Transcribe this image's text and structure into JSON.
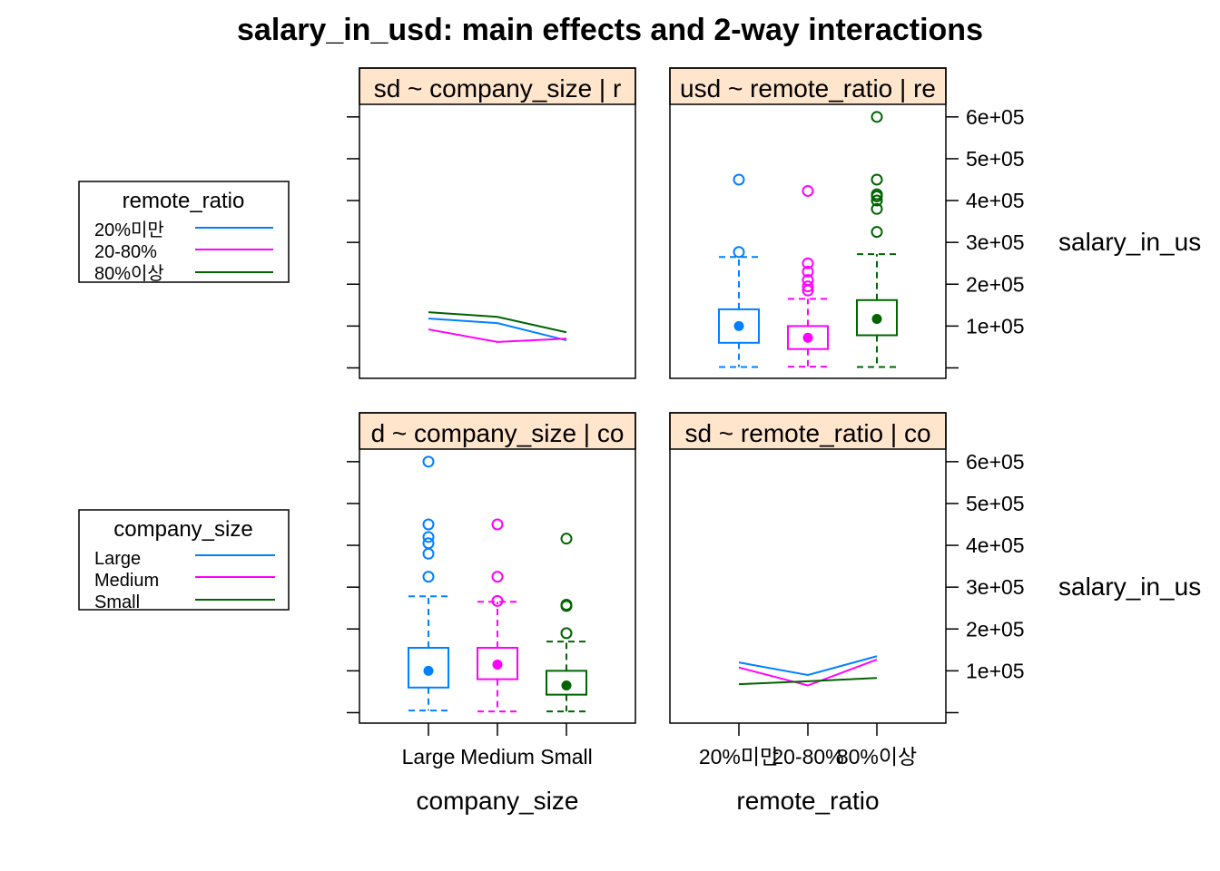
{
  "title": "salary_in_usd: main effects and 2-way interactions",
  "colors": {
    "strip_bg": "#FFE5CC",
    "series": [
      "#0080FF",
      "#FF00FF",
      "#006400"
    ]
  },
  "y_axis": {
    "ylim": [
      -25000,
      630000
    ],
    "tick_values": [
      0,
      100000,
      200000,
      300000,
      400000,
      500000,
      600000
    ],
    "tick_labels": [
      "",
      "1e+05",
      "2e+05",
      "3e+05",
      "4e+05",
      "5e+05",
      "6e+05"
    ],
    "label": "salary_in_us"
  },
  "x_axis_labels": {
    "left": "company_size",
    "right": "remote_ratio"
  },
  "legends": [
    {
      "title": "remote_ratio",
      "entries": [
        "20%미만",
        "20-80%",
        "80%이상"
      ]
    },
    {
      "title": "company_size",
      "entries": [
        "Large",
        "Medium",
        "Small"
      ]
    }
  ],
  "chart_data": [
    {
      "type": "line",
      "panel": "top-left",
      "strip": "sd ~ company_size | r",
      "x_categories": [
        "Large",
        "Medium",
        "Small"
      ],
      "series": [
        {
          "name": "20%미만",
          "values": [
            118000,
            107000,
            66000
          ]
        },
        {
          "name": "20-80%",
          "values": [
            92000,
            62000,
            70000
          ]
        },
        {
          "name": "80%이상",
          "values": [
            133000,
            122000,
            85000
          ]
        }
      ]
    },
    {
      "type": "box",
      "panel": "top-right",
      "strip": "usd ~ remote_ratio | re",
      "x_categories": [
        "20%미만",
        "20-80%",
        "80%이상"
      ],
      "boxes": [
        {
          "name": "20%미만",
          "whisker_low": 2000,
          "q1": 60000,
          "median": 100000,
          "q3": 140000,
          "whisker_high": 265000,
          "outliers": [
            277000,
            450000
          ]
        },
        {
          "name": "20-80%",
          "whisker_low": 3000,
          "q1": 45000,
          "median": 72000,
          "q3": 100000,
          "whisker_high": 165000,
          "outliers": [
            185000,
            195000,
            210000,
            230000,
            250000,
            423000
          ]
        },
        {
          "name": "80%이상",
          "whisker_low": 2000,
          "q1": 78000,
          "median": 117000,
          "q3": 162000,
          "whisker_high": 272000,
          "outliers": [
            325000,
            380000,
            400000,
            410000,
            415000,
            450000,
            600000
          ]
        }
      ]
    },
    {
      "type": "box",
      "panel": "bottom-left",
      "strip": "d ~ company_size | co",
      "x_categories": [
        "Large",
        "Medium",
        "Small"
      ],
      "boxes": [
        {
          "name": "Large",
          "whisker_low": 5000,
          "q1": 60000,
          "median": 100000,
          "q3": 155000,
          "whisker_high": 278000,
          "outliers": [
            325000,
            380000,
            405000,
            420000,
            450000,
            600000
          ]
        },
        {
          "name": "Medium",
          "whisker_low": 3000,
          "q1": 80000,
          "median": 115000,
          "q3": 155000,
          "whisker_high": 265000,
          "outliers": [
            267000,
            325000,
            450000
          ]
        },
        {
          "name": "Small",
          "whisker_low": 3000,
          "q1": 43000,
          "median": 65000,
          "q3": 100000,
          "whisker_high": 170000,
          "outliers": [
            190000,
            255000,
            258000,
            416000
          ]
        }
      ]
    },
    {
      "type": "line",
      "panel": "bottom-right",
      "strip": "sd ~ remote_ratio | co",
      "x_categories": [
        "20%미만",
        "20-80%",
        "80%이상"
      ],
      "series": [
        {
          "name": "Large",
          "values": [
            120000,
            90000,
            135000
          ]
        },
        {
          "name": "Medium",
          "values": [
            108000,
            65000,
            127000
          ]
        },
        {
          "name": "Small",
          "values": [
            68000,
            75000,
            83000
          ]
        }
      ]
    }
  ]
}
